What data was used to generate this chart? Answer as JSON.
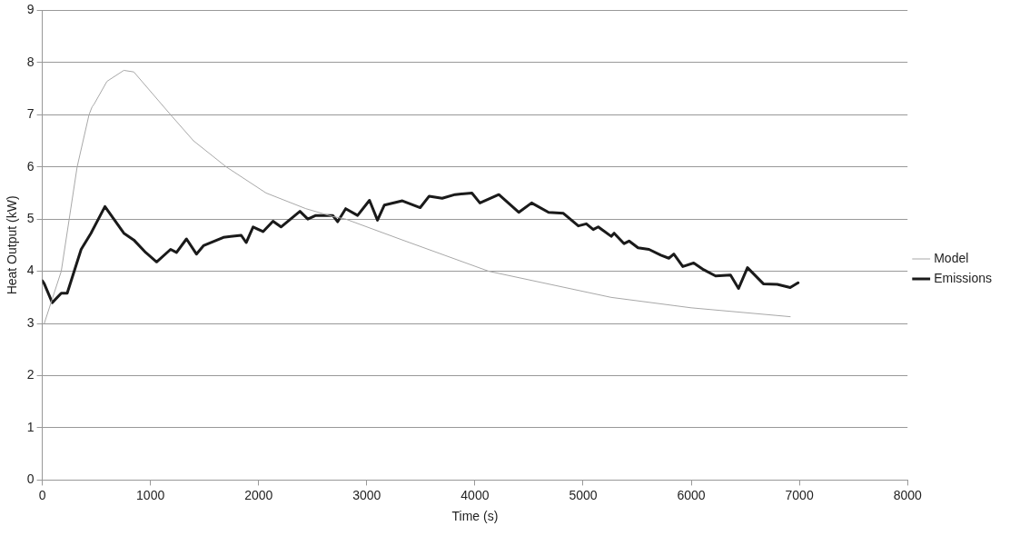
{
  "chart_data": {
    "type": "line",
    "xlabel": "Time (s)",
    "ylabel": "Heat Output (kW)",
    "xlim": [
      0,
      8000
    ],
    "xticks": [
      0,
      1000,
      2000,
      3000,
      4000,
      5000,
      6000,
      7000,
      8000
    ],
    "ylim": [
      0,
      9
    ],
    "yticks": [
      0,
      1,
      2,
      3,
      4,
      5,
      6,
      7,
      8,
      9
    ],
    "grid": "y",
    "legend": "right",
    "marker": "none",
    "line_style": "solid",
    "series": [
      {
        "name": "Model",
        "color": "#a8a8a8",
        "x": [
          18,
          175,
          322,
          432,
          460,
          478,
          598,
          754,
          846,
          1186,
          1398,
          1701,
          2069,
          2437,
          2685,
          2805,
          3329,
          4129,
          5260,
          6000,
          6915
        ],
        "values": [
          3.0,
          4.0,
          6.0,
          7.0,
          7.15,
          7.2,
          7.64,
          7.85,
          7.82,
          7.0,
          6.5,
          6.0,
          5.5,
          5.2,
          5.05,
          5.0,
          4.6,
          4.0,
          3.5,
          3.3,
          3.13
        ]
      },
      {
        "name": "Emissions",
        "color": "#1a1a1a",
        "x": [
          0,
          18,
          92,
          175,
          230,
          359,
          450,
          579,
          754,
          846,
          956,
          1057,
          1186,
          1241,
          1333,
          1425,
          1490,
          1674,
          1839,
          1885,
          1949,
          2041,
          2133,
          2207,
          2382,
          2455,
          2529,
          2685,
          2731,
          2805,
          2915,
          3025,
          3099,
          3163,
          3329,
          3494,
          3577,
          3697,
          3816,
          3972,
          4046,
          4221,
          4405,
          4524,
          4681,
          4818,
          4956,
          5030,
          5094,
          5140,
          5260,
          5287,
          5379,
          5425,
          5508,
          5609,
          5719,
          5793,
          5839,
          5922,
          6023,
          6115,
          6225,
          6363,
          6437,
          6520,
          6667,
          6795,
          6915,
          6988
        ],
        "values": [
          3.82,
          3.76,
          3.4,
          3.58,
          3.58,
          4.42,
          4.73,
          5.24,
          4.73,
          4.6,
          4.36,
          4.18,
          4.42,
          4.36,
          4.62,
          4.33,
          4.49,
          4.65,
          4.69,
          4.55,
          4.85,
          4.76,
          4.96,
          4.85,
          5.15,
          5.0,
          5.07,
          5.07,
          4.95,
          5.2,
          5.07,
          5.36,
          4.98,
          5.27,
          5.35,
          5.22,
          5.44,
          5.4,
          5.47,
          5.5,
          5.31,
          5.47,
          5.13,
          5.31,
          5.13,
          5.11,
          4.87,
          4.91,
          4.8,
          4.85,
          4.67,
          4.73,
          4.53,
          4.58,
          4.45,
          4.42,
          4.31,
          4.25,
          4.33,
          4.09,
          4.16,
          4.03,
          3.91,
          3.93,
          3.67,
          4.07,
          3.76,
          3.75,
          3.69,
          3.78
        ]
      }
    ]
  }
}
